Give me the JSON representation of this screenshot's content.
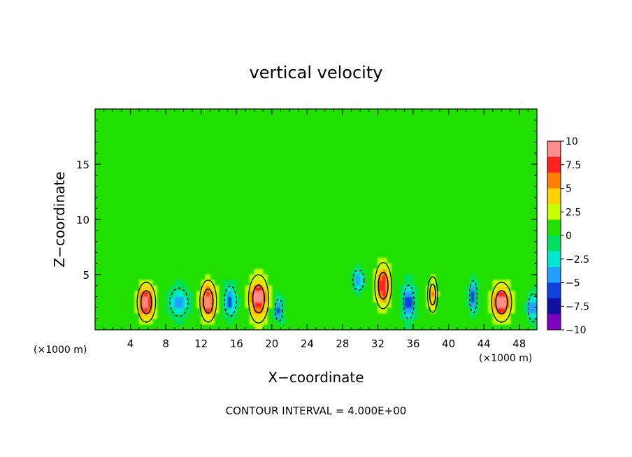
{
  "chart_data": {
    "type": "heatmap",
    "title": "vertical velocity",
    "xlabel": "X−coordinate",
    "ylabel": "Z−coordinate",
    "x_unit": "(×1000 m)",
    "y_unit": "(×1000 m)",
    "xlim": [
      0,
      50
    ],
    "ylim": [
      0,
      20
    ],
    "x_ticks": [
      4,
      8,
      12,
      16,
      20,
      24,
      28,
      32,
      36,
      40,
      44,
      48
    ],
    "x_tick_labels": [
      "4",
      "8",
      "12",
      "16",
      "20",
      "24",
      "28",
      "32",
      "36",
      "40",
      "44",
      "48"
    ],
    "y_ticks": [
      5,
      10,
      15
    ],
    "y_tick_labels": [
      "5",
      "10",
      "15"
    ],
    "colorbar": {
      "min": -10,
      "max": 10,
      "ticks": [
        10,
        7.5,
        5,
        2.5,
        0,
        -2.5,
        -5,
        -7.5,
        -10
      ],
      "tick_labels": [
        "10",
        "7.5",
        "5",
        "2.5",
        "0",
        "−2.5",
        "−5",
        "−7.5",
        "−10"
      ],
      "colors": [
        "#ff8c8c",
        "#ff2020",
        "#ff8000",
        "#ffd000",
        "#c8ff00",
        "#20e000",
        "#00e060",
        "#00e8d0",
        "#20a0ff",
        "#1040e0",
        "#1010a0",
        "#8000c0"
      ]
    },
    "background_value": 0.5,
    "features": [
      {
        "kind": "updraft",
        "x": 5.8,
        "z": 2.5,
        "value": 9,
        "w": 2.2,
        "h": 3.8
      },
      {
        "kind": "downdraft",
        "x": 9.5,
        "z": 2.5,
        "value": -6,
        "w": 2.4,
        "h": 3.0
      },
      {
        "kind": "updraft",
        "x": 12.8,
        "z": 2.6,
        "value": 8.5,
        "w": 2.0,
        "h": 4.0
      },
      {
        "kind": "downdraft",
        "x": 15.3,
        "z": 2.6,
        "value": -6,
        "w": 1.6,
        "h": 3.2
      },
      {
        "kind": "updraft",
        "x": 18.5,
        "z": 2.8,
        "value": 9,
        "w": 2.4,
        "h": 4.6
      },
      {
        "kind": "downdraft",
        "x": 20.8,
        "z": 1.8,
        "value": -6.5,
        "w": 1.0,
        "h": 2.4
      },
      {
        "kind": "downdraft",
        "x": 29.8,
        "z": 4.5,
        "value": -5,
        "w": 1.5,
        "h": 2.2
      },
      {
        "kind": "updraft",
        "x": 32.6,
        "z": 4.0,
        "value": 8,
        "w": 2.0,
        "h": 4.4
      },
      {
        "kind": "downdraft",
        "x": 35.5,
        "z": 2.5,
        "value": -7.5,
        "w": 1.4,
        "h": 3.6
      },
      {
        "kind": "updraft",
        "x": 38.2,
        "z": 3.2,
        "value": 5,
        "w": 1.2,
        "h": 3.4
      },
      {
        "kind": "downdraft",
        "x": 42.8,
        "z": 3.0,
        "value": -7,
        "w": 1.0,
        "h": 3.4
      },
      {
        "kind": "updraft",
        "x": 46.0,
        "z": 2.5,
        "value": 9,
        "w": 2.4,
        "h": 3.8
      },
      {
        "kind": "downdraft",
        "x": 49.6,
        "z": 2.0,
        "value": -6,
        "w": 1.4,
        "h": 3.0
      }
    ],
    "grid": false,
    "legend": "right colorbar"
  },
  "footer": {
    "contour_interval": "CONTOUR INTERVAL = 4.000E+00"
  }
}
